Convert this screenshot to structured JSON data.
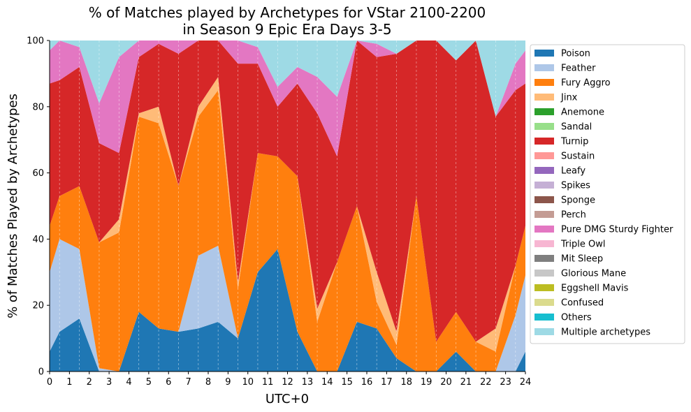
{
  "chart_data": {
    "type": "area",
    "stacked": true,
    "title_lines": [
      "% of Matches played by Archetypes for VStar 2100-2200",
      "in Season 9 Epic Era Days 3-5"
    ],
    "xlabel": "UTC+0",
    "ylabel": "% of Matches Played by Archetypes",
    "xlim": [
      0,
      24
    ],
    "ylim": [
      0,
      100
    ],
    "x_ticks": [
      0,
      1,
      2,
      3,
      4,
      5,
      6,
      7,
      8,
      9,
      10,
      11,
      12,
      13,
      14,
      15,
      16,
      17,
      18,
      19,
      20,
      21,
      22,
      23,
      24
    ],
    "y_ticks": [
      0,
      20,
      40,
      60,
      80,
      100
    ],
    "grid": "vertical dashed at half hours",
    "legend_position": "right, outside plot",
    "x": [
      0,
      0.5,
      1.5,
      2.5,
      3.5,
      4.5,
      5.5,
      6.5,
      7.5,
      8.5,
      9.5,
      10.5,
      11.5,
      12.5,
      13.5,
      14.5,
      15.5,
      16.5,
      17.5,
      18.5,
      19.5,
      20.5,
      21.5,
      22.5,
      23.5,
      24
    ],
    "series": [
      {
        "name": "Poison",
        "color": "#1f77b4",
        "values": [
          6,
          12,
          16,
          0,
          0,
          18,
          13,
          12,
          13,
          15,
          10,
          30,
          37,
          12,
          0,
          0,
          15,
          13,
          4,
          0,
          0,
          6,
          0,
          0,
          0,
          6
        ]
      },
      {
        "name": "Feather",
        "color": "#aec7e8",
        "values": [
          24,
          28,
          21,
          1,
          0,
          0,
          0,
          0,
          22,
          23,
          0,
          0,
          0,
          0,
          0,
          0,
          0,
          0,
          0,
          0,
          0,
          0,
          0,
          0,
          17,
          23
        ]
      },
      {
        "name": "Fury Aggro",
        "color": "#ff7f0e",
        "values": [
          14,
          13,
          19,
          38,
          42,
          59,
          62,
          44,
          42,
          47,
          15,
          36,
          28,
          47,
          15,
          33,
          35,
          8,
          4,
          53,
          9,
          12,
          9,
          6,
          15,
          15
        ]
      },
      {
        "name": "Jinx",
        "color": "#ffbb78",
        "values": [
          0,
          0,
          0,
          0,
          4,
          1,
          5,
          0,
          3,
          4,
          2,
          0,
          0,
          0,
          4,
          0,
          0,
          9,
          4,
          0,
          0,
          0,
          0,
          7,
          0,
          0
        ]
      },
      {
        "name": "Anemone",
        "color": "#2ca02c",
        "values": [
          0,
          0,
          0,
          0,
          0,
          0,
          0,
          0,
          0,
          0,
          0,
          0,
          0,
          0,
          0,
          0,
          0,
          0,
          0,
          0,
          0,
          0,
          0,
          0,
          0,
          0
        ]
      },
      {
        "name": "Sandal",
        "color": "#98df8a",
        "values": [
          0,
          0,
          0,
          0,
          0,
          0,
          0,
          0,
          0,
          0,
          0,
          0,
          0,
          0,
          0,
          0,
          0,
          0,
          0,
          0,
          0,
          0,
          0,
          0,
          0,
          0
        ]
      },
      {
        "name": "Turnip",
        "color": "#d62728",
        "values": [
          43,
          35,
          36,
          30,
          20,
          17,
          19,
          40,
          20,
          11,
          66,
          27,
          15,
          28,
          59,
          32,
          50,
          65,
          84,
          47,
          91,
          76,
          91,
          64,
          53,
          43
        ]
      },
      {
        "name": "Sustain",
        "color": "#ff9896",
        "values": [
          0,
          0,
          0,
          0,
          0,
          0,
          0,
          0,
          0,
          0,
          0,
          0,
          0,
          0,
          0,
          0,
          0,
          0,
          0,
          0,
          0,
          0,
          0,
          0,
          0,
          0
        ]
      },
      {
        "name": "Leafy",
        "color": "#9467bd",
        "values": [
          0,
          0,
          0,
          0,
          0,
          0,
          0,
          0,
          0,
          0,
          0,
          0,
          0,
          0,
          0,
          0,
          0,
          0,
          0,
          0,
          0,
          0,
          0,
          0,
          0,
          0
        ]
      },
      {
        "name": "Spikes",
        "color": "#c5b0d5",
        "values": [
          0,
          0,
          0,
          0,
          0,
          0,
          0,
          0,
          0,
          0,
          0,
          0,
          0,
          0,
          0,
          0,
          0,
          0,
          0,
          0,
          0,
          0,
          0,
          0,
          0,
          0
        ]
      },
      {
        "name": "Sponge",
        "color": "#8c564b",
        "values": [
          0,
          0,
          0,
          0,
          0,
          0,
          0,
          0,
          0,
          0,
          0,
          0,
          0,
          0,
          0,
          0,
          0,
          0,
          0,
          0,
          0,
          0,
          0,
          0,
          0,
          0
        ]
      },
      {
        "name": "Perch",
        "color": "#c49c94",
        "values": [
          0,
          0,
          0,
          0,
          0,
          0,
          0,
          0,
          0,
          0,
          0,
          0,
          0,
          0,
          0,
          0,
          0,
          0,
          0,
          0,
          0,
          0,
          0,
          0,
          0,
          0
        ]
      },
      {
        "name": "Pure DMG Sturdy Fighter",
        "color": "#e377c2",
        "values": [
          10,
          12,
          6,
          12,
          29,
          5,
          1,
          4,
          0,
          0,
          7,
          5,
          6,
          5,
          11,
          18,
          0,
          4,
          0,
          0,
          0,
          0,
          0,
          0,
          8,
          10
        ]
      },
      {
        "name": "Triple Owl",
        "color": "#f7b6d2",
        "values": [
          0,
          0,
          0,
          0,
          0,
          0,
          0,
          0,
          0,
          0,
          0,
          0,
          0,
          0,
          0,
          0,
          0,
          0,
          0,
          0,
          0,
          0,
          0,
          0,
          0,
          0
        ]
      },
      {
        "name": "Mit Sleep",
        "color": "#7f7f7f",
        "values": [
          0,
          0,
          0,
          0,
          0,
          0,
          0,
          0,
          0,
          0,
          0,
          0,
          0,
          0,
          0,
          0,
          0,
          0,
          0,
          0,
          0,
          0,
          0,
          0,
          0,
          0
        ]
      },
      {
        "name": "Glorious Mane",
        "color": "#c7c7c7",
        "values": [
          0,
          0,
          0,
          0,
          0,
          0,
          0,
          0,
          0,
          0,
          0,
          0,
          0,
          0,
          0,
          0,
          0,
          0,
          0,
          0,
          0,
          0,
          0,
          0,
          0,
          0
        ]
      },
      {
        "name": "Eggshell Mavis",
        "color": "#bcbd22",
        "values": [
          0,
          0,
          0,
          0,
          0,
          0,
          0,
          0,
          0,
          0,
          0,
          0,
          0,
          0,
          0,
          0,
          0,
          0,
          0,
          0,
          0,
          0,
          0,
          0,
          0,
          0
        ]
      },
      {
        "name": "Confused",
        "color": "#dbdb8d",
        "values": [
          0,
          0,
          0,
          0,
          0,
          0,
          0,
          0,
          0,
          0,
          0,
          0,
          0,
          0,
          0,
          0,
          0,
          0,
          0,
          0,
          0,
          0,
          0,
          0,
          0,
          0
        ]
      },
      {
        "name": "Others",
        "color": "#17becf",
        "values": [
          0,
          0,
          0,
          0,
          0,
          0,
          0,
          0,
          0,
          0,
          0,
          0,
          0,
          0,
          0,
          0,
          0,
          0,
          0,
          0,
          0,
          0,
          0,
          0,
          0,
          0
        ]
      },
      {
        "name": "Multiple archetypes",
        "color": "#9edae5",
        "values": [
          3,
          0,
          2,
          19,
          5,
          0,
          0,
          0,
          0,
          0,
          0,
          2,
          14,
          8,
          11,
          17,
          0,
          1,
          4,
          0,
          0,
          6,
          0,
          23,
          7,
          3
        ]
      }
    ]
  }
}
